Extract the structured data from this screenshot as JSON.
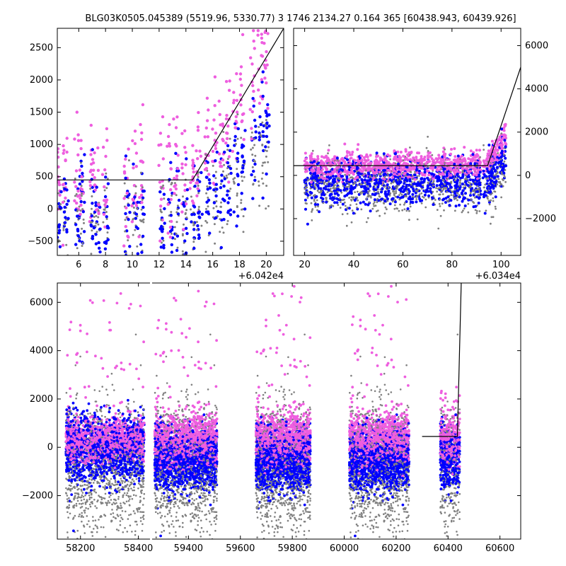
{
  "title": "BLG03K0505.045389 (5519.96, 5330.77)    3 1746 2134.27 0.164 365 [60438.943, 60439.926]",
  "colors": {
    "blue": "#0000ff",
    "pink": "#ee5edf",
    "gray": "#808080",
    "model": "#000000"
  },
  "chart_data": [
    {
      "type": "scatter",
      "panel": "top-left",
      "xlim": [
        60424.4,
        60441.3
      ],
      "ylim": [
        -720,
        2800
      ],
      "x_offset_label": "+6.042e4",
      "xtick_labels": [
        "6",
        "8",
        "10",
        "12",
        "14",
        "16",
        "18",
        "20"
      ],
      "ytick_labels": [
        "−500",
        "0",
        "500",
        "1000",
        "1500",
        "2000",
        "2500"
      ],
      "yaxis_side": "left",
      "model": {
        "x": [
          60424.4,
          60434.5,
          60441.3
        ],
        "y": [
          450,
          450,
          2800
        ]
      }
    },
    {
      "type": "scatter",
      "panel": "top-right",
      "xlim": [
        60355.5,
        60448.0
      ],
      "ylim": [
        -3700,
        6800
      ],
      "x_offset_label": "+6.034e4",
      "xtick_labels": [
        "20",
        "40",
        "60",
        "80",
        "100"
      ],
      "ytick_labels": [
        "−2000",
        "0",
        "2000",
        "4000",
        "6000"
      ],
      "yaxis_side": "right",
      "model": {
        "x": [
          60355.5,
          60434.5,
          60448.0
        ],
        "y": [
          450,
          450,
          5000
        ]
      }
    },
    {
      "type": "scatter",
      "panel": "bottom",
      "xlim": [
        58120,
        60680
      ],
      "ylim": [
        -3800,
        6800
      ],
      "x_break": [
        58440,
        59260
      ],
      "xtick_labels": [
        "58200",
        "58400",
        "59400",
        "59600",
        "59800",
        "60000",
        "60200",
        "60400",
        "60600"
      ],
      "ytick_labels": [
        "−2000",
        "0",
        "2000",
        "4000",
        "6000"
      ],
      "yaxis_side": "left",
      "seasons": [
        {
          "x": [
            58150,
            58420
          ],
          "spike": 6400
        },
        {
          "x": [
            59270,
            59510
          ],
          "spike": 6500
        },
        {
          "x": [
            59660,
            59870
          ],
          "spike": 6700
        },
        {
          "x": [
            60020,
            60250
          ],
          "spike": 6700
        },
        {
          "x": [
            60370,
            60445
          ],
          "spike": 2600
        }
      ],
      "model": {
        "x": [
          60300,
          60436,
          60451
        ],
        "y": [
          450,
          450,
          6900
        ]
      }
    }
  ]
}
